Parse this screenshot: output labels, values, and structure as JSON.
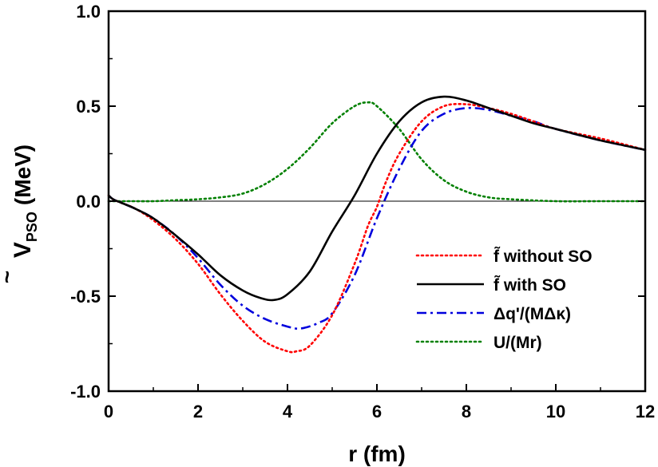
{
  "chart_data": {
    "type": "line",
    "xlabel": "r (fm)",
    "ylabel": {
      "main": "V",
      "accent": "~",
      "sub": "PSO",
      "unit": "(MeV)"
    },
    "xlim": [
      0,
      12
    ],
    "ylim": [
      -1.0,
      1.0
    ],
    "xticks": [
      "0",
      "2",
      "4",
      "6",
      "8",
      "10",
      "12"
    ],
    "yticks": [
      "-1.0",
      "-0.5",
      "0.0",
      "0.5",
      "1.0"
    ],
    "grid": false,
    "legend_position": "bottom-right",
    "zero_line": true,
    "series": [
      {
        "name": "f̃ without  SO",
        "color": "#ff0000",
        "style": "dotted",
        "x": [
          0,
          0.1,
          0.3,
          0.6,
          1.0,
          1.5,
          2.0,
          2.5,
          3.0,
          3.5,
          4.0,
          4.2,
          4.5,
          5.0,
          5.5,
          5.8,
          6.0,
          6.2,
          6.5,
          7.0,
          7.5,
          8.0,
          8.5,
          9.0,
          9.5,
          10.0,
          11.0,
          12.0
        ],
        "y": [
          0.03,
          0.01,
          -0.01,
          -0.04,
          -0.1,
          -0.2,
          -0.33,
          -0.49,
          -0.63,
          -0.74,
          -0.79,
          -0.79,
          -0.76,
          -0.6,
          -0.33,
          -0.13,
          -0.03,
          0.1,
          0.25,
          0.42,
          0.5,
          0.51,
          0.49,
          0.46,
          0.42,
          0.38,
          0.33,
          0.27
        ]
      },
      {
        "name": "f̃ with SO",
        "color": "#000000",
        "style": "solid",
        "x": [
          0,
          0.1,
          0.3,
          0.6,
          1.0,
          1.5,
          2.0,
          2.5,
          3.0,
          3.4,
          3.7,
          4.0,
          4.5,
          5.0,
          5.5,
          6.0,
          6.5,
          7.0,
          7.5,
          8.0,
          8.5,
          9.0,
          9.5,
          10.0,
          11.0,
          12.0
        ],
        "y": [
          0.03,
          0.01,
          -0.01,
          -0.04,
          -0.09,
          -0.18,
          -0.28,
          -0.39,
          -0.47,
          -0.51,
          -0.52,
          -0.49,
          -0.37,
          -0.16,
          0.03,
          0.25,
          0.42,
          0.52,
          0.55,
          0.53,
          0.49,
          0.45,
          0.41,
          0.38,
          0.32,
          0.27
        ]
      },
      {
        "name": "Δq'/(MΔκ)",
        "color": "#0000dd",
        "style": "dashdot",
        "x": [
          0,
          0.1,
          0.3,
          0.6,
          1.0,
          1.5,
          2.0,
          2.5,
          3.0,
          3.5,
          4.0,
          4.3,
          4.7,
          5.0,
          5.5,
          6.0,
          6.5,
          7.0,
          7.5,
          8.0,
          8.5,
          9.0,
          9.5,
          10.0,
          11.0,
          12.0
        ],
        "y": [
          0.03,
          0.01,
          -0.01,
          -0.04,
          -0.09,
          -0.18,
          -0.3,
          -0.44,
          -0.55,
          -0.62,
          -0.66,
          -0.67,
          -0.64,
          -0.59,
          -0.39,
          -0.09,
          0.17,
          0.37,
          0.46,
          0.49,
          0.48,
          0.45,
          0.42,
          0.38,
          0.32,
          0.27
        ]
      },
      {
        "name": "U/(Mr)",
        "color": "#008000",
        "style": "dotted",
        "x": [
          0,
          0.5,
          1.0,
          1.5,
          2.0,
          2.5,
          3.0,
          3.5,
          4.0,
          4.5,
          5.0,
          5.5,
          5.8,
          6.0,
          6.5,
          7.0,
          7.5,
          8.0,
          8.5,
          9.0,
          10.0,
          11.0,
          12.0
        ],
        "y": [
          0.0,
          0.0,
          0.0,
          0.005,
          0.01,
          0.02,
          0.04,
          0.09,
          0.17,
          0.28,
          0.41,
          0.5,
          0.52,
          0.5,
          0.38,
          0.22,
          0.11,
          0.05,
          0.02,
          0.01,
          0.0,
          0.0,
          0.0
        ]
      }
    ]
  }
}
